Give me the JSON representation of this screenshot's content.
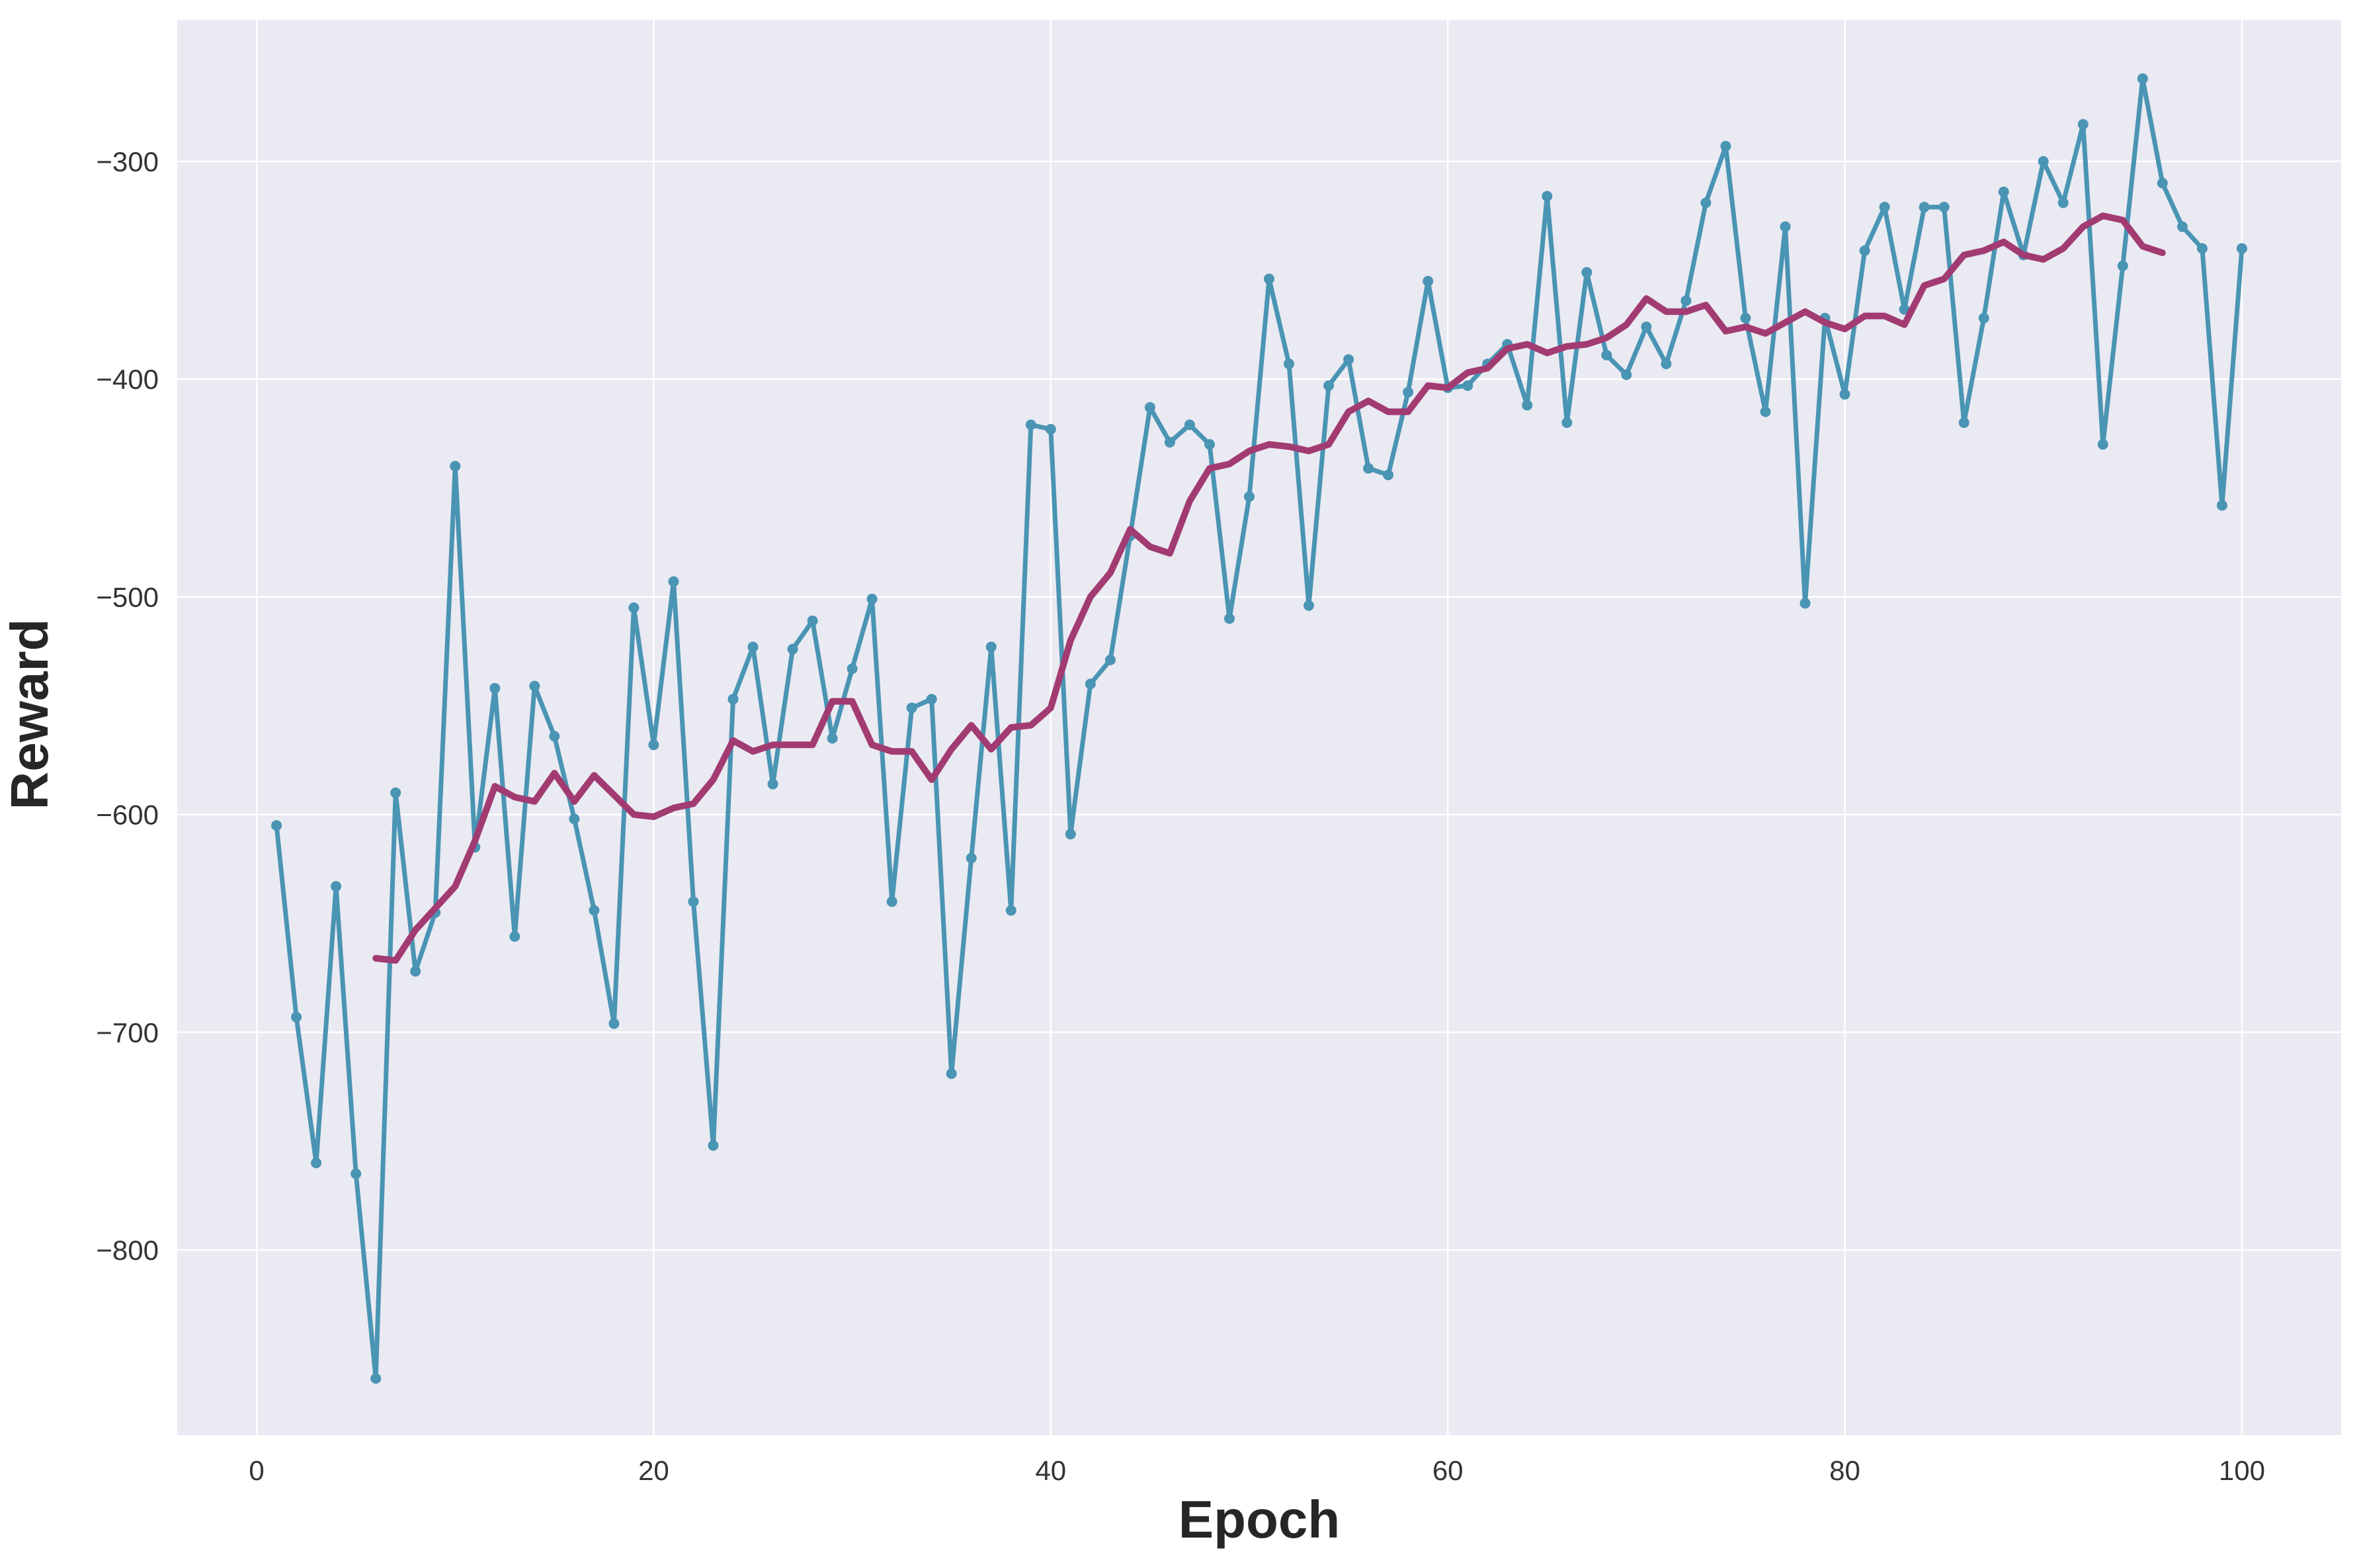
{
  "chart_data": {
    "type": "line",
    "title": "",
    "xlabel": "Epoch",
    "ylabel": "Reward",
    "xlim": [
      -4,
      105
    ],
    "ylim": [
      -885,
      -235
    ],
    "xticks": [
      0,
      20,
      40,
      60,
      80,
      100
    ],
    "yticks": [
      -800,
      -700,
      -600,
      -500,
      -400,
      -300
    ],
    "grid": true,
    "legend": "none",
    "colors": {
      "plot_background": "#eaeaf2",
      "grid": "#ffffff",
      "raw": "#4a94b4",
      "smoothed": "#a23b72"
    },
    "series": [
      {
        "style": "line-with-markers",
        "color": "#4a94b4",
        "x": [
          1,
          2,
          3,
          4,
          5,
          6,
          7,
          8,
          9,
          10,
          11,
          12,
          13,
          14,
          15,
          16,
          17,
          18,
          19,
          20,
          21,
          22,
          23,
          24,
          25,
          26,
          27,
          28,
          29,
          30,
          31,
          32,
          33,
          34,
          35,
          36,
          37,
          38,
          39,
          40,
          41,
          42,
          43,
          44,
          45,
          46,
          47,
          48,
          49,
          50,
          51,
          52,
          53,
          54,
          55,
          56,
          57,
          58,
          59,
          60,
          61,
          62,
          63,
          64,
          65,
          66,
          67,
          68,
          69,
          70,
          71,
          72,
          73,
          74,
          75,
          76,
          77,
          78,
          79,
          80,
          81,
          82,
          83,
          84,
          85,
          86,
          87,
          88,
          89,
          90,
          91,
          92,
          93,
          94,
          95,
          96,
          97,
          98,
          99,
          100
        ],
        "y": [
          -605,
          -693,
          -760,
          -633,
          -765,
          -859,
          -590,
          -672,
          -645,
          -440,
          -615,
          -542,
          -656,
          -541,
          -564,
          -602,
          -644,
          -696,
          -505,
          -568,
          -493,
          -640,
          -752,
          -547,
          -523,
          -586,
          -524,
          -511,
          -565,
          -533,
          -501,
          -640,
          -551,
          -547,
          -719,
          -620,
          -523,
          -644,
          -421,
          -423,
          -609,
          -540,
          -529,
          -472,
          -413,
          -429,
          -421,
          -430,
          -510,
          -454,
          -354,
          -393,
          -504,
          -403,
          -391,
          -441,
          -444,
          -406,
          -355,
          -404,
          -403,
          -393,
          -384,
          -412,
          -316,
          -420,
          -351,
          -389,
          -398,
          -376,
          -393,
          -364,
          -319,
          -293,
          -372,
          -415,
          -330,
          -503,
          -372,
          -407,
          -341,
          -321,
          -368,
          -321,
          -321,
          -420,
          -372,
          -314,
          -343,
          -300,
          -319,
          -283,
          -430,
          -348,
          -262,
          -310,
          -330,
          -340,
          -458,
          -340
        ]
      },
      {
        "style": "line",
        "color": "#a23b72",
        "x": [
          6,
          7,
          8,
          9,
          10,
          11,
          12,
          13,
          14,
          15,
          16,
          17,
          18,
          19,
          20,
          21,
          22,
          23,
          24,
          25,
          26,
          27,
          28,
          29,
          30,
          31,
          32,
          33,
          34,
          35,
          36,
          37,
          38,
          39,
          40,
          41,
          42,
          43,
          44,
          45,
          46,
          47,
          48,
          49,
          50,
          51,
          52,
          53,
          54,
          55,
          56,
          57,
          58,
          59,
          60,
          61,
          62,
          63,
          64,
          65,
          66,
          67,
          68,
          69,
          70,
          71,
          72,
          73,
          74,
          75,
          76,
          77,
          78,
          79,
          80,
          81,
          82,
          83,
          84,
          85,
          86,
          87,
          88,
          89,
          90,
          91,
          92,
          93,
          94,
          95,
          96
        ],
        "y": [
          -666,
          -667,
          -653,
          -643,
          -633,
          -612,
          -587,
          -592,
          -594,
          -581,
          -594,
          -582,
          -591,
          -600,
          -601,
          -597,
          -595,
          -584,
          -566,
          -571,
          -568,
          -568,
          -568,
          -548,
          -548,
          -568,
          -571,
          -571,
          -584,
          -570,
          -559,
          -570,
          -560,
          -559,
          -551,
          -520,
          -500,
          -489,
          -469,
          -477,
          -480,
          -456,
          -441,
          -439,
          -433,
          -430,
          -431,
          -433,
          -430,
          -415,
          -410,
          -415,
          -415,
          -403,
          -404,
          -397,
          -395,
          -386,
          -384,
          -388,
          -385,
          -384,
          -381,
          -375,
          -363,
          -369,
          -369,
          -366,
          -378,
          -376,
          -379,
          -374,
          -369,
          -374,
          -377,
          -371,
          -371,
          -375,
          -357,
          -354,
          -343,
          -341,
          -337,
          -343,
          -345,
          -340,
          -330,
          -325,
          -327,
          -339,
          -342
        ]
      }
    ]
  }
}
